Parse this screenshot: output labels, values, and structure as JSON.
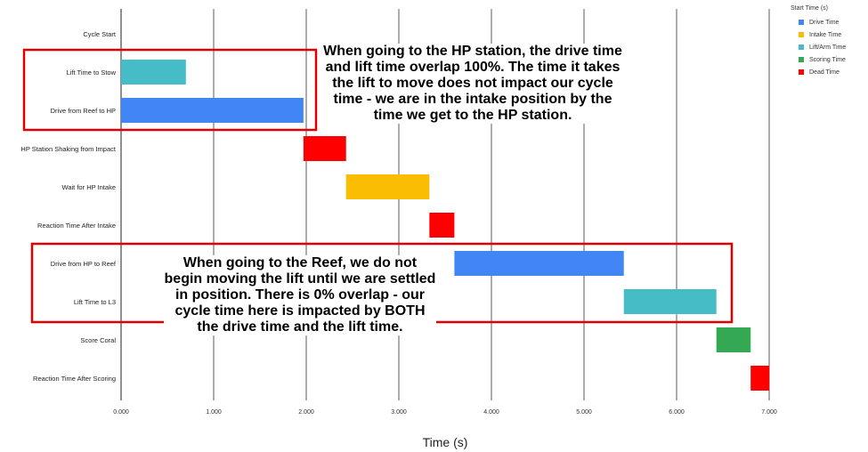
{
  "chart_data": {
    "type": "gantt",
    "xlabel": "Time (s)",
    "xlim": [
      0,
      7
    ],
    "x_ticks": [
      "0.000",
      "1.000",
      "2.000",
      "3.000",
      "4.000",
      "5.000",
      "6.000",
      "7.000"
    ],
    "legend_title": "Start Time (s)",
    "legend_position": "top-right",
    "series": [
      {
        "name": "Drive Time",
        "color": "#4285F4"
      },
      {
        "name": "Intake Time",
        "color": "#FBBC04"
      },
      {
        "name": "Lift/Arm Time",
        "color": "#46BDC6"
      },
      {
        "name": "Scoring Time",
        "color": "#34A853"
      },
      {
        "name": "Dead Time",
        "color": "#FF0000"
      }
    ],
    "tasks": [
      {
        "label": "Cycle Start",
        "start": 0,
        "end": 0,
        "series": null
      },
      {
        "label": "Lift Time to Stow",
        "start": 0,
        "end": 0.7,
        "series": "Lift/Arm Time"
      },
      {
        "label": "Drive from Reef to HP",
        "start": 0,
        "end": 1.97,
        "series": "Drive Time"
      },
      {
        "label": "HP Station Shaking from Impact",
        "start": 1.97,
        "end": 2.43,
        "series": "Dead Time"
      },
      {
        "label": "Wait for HP Intake",
        "start": 2.43,
        "end": 3.33,
        "series": "Intake Time"
      },
      {
        "label": "Reaction Time After Intake",
        "start": 3.33,
        "end": 3.6,
        "series": "Dead Time"
      },
      {
        "label": "Drive from HP to Reef",
        "start": 3.6,
        "end": 5.43,
        "series": "Drive Time"
      },
      {
        "label": "Lift Time to L3",
        "start": 5.43,
        "end": 6.43,
        "series": "Lift/Arm Time"
      },
      {
        "label": "Score Coral",
        "start": 6.43,
        "end": 6.8,
        "series": "Scoring Time"
      },
      {
        "label": "Reaction Time After Scoring",
        "start": 6.8,
        "end": 7.0,
        "series": "Dead Time"
      }
    ],
    "annotations": [
      {
        "text": "When going to the HP station, the drive time and lift time overlap 100%. The time it takes the lift to move does not impact our cycle time - we are in the intake position by the time we get to the HP station."
      },
      {
        "text": "When going to the Reef, we do not begin moving the lift until we are settled in position. There is 0% overlap - our cycle time here is impacted by BOTH the drive time and the lift time."
      }
    ],
    "highlight_color": "#E00000"
  }
}
